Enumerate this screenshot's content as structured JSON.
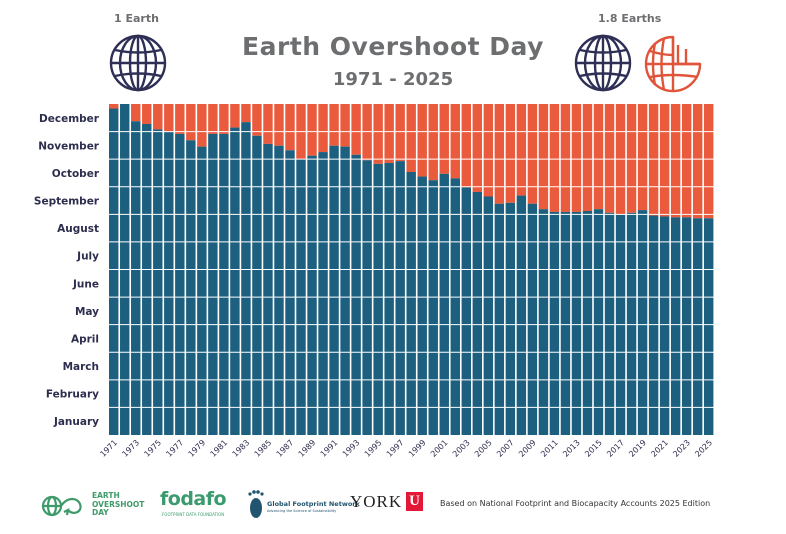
{
  "header": {
    "title": "Earth Overshoot Day",
    "subtitle": "1971 - 2025",
    "left_icon_label": "1 Earth",
    "right_icon_label": "1.8 Earths",
    "left_icon": "globe-icon",
    "right_icon": "partial-globe-icon"
  },
  "colors": {
    "remaining": "#1c5f7e",
    "overshoot": "#ea5a3c",
    "globe": "#2f2f56",
    "partial_globe": "#e0553a",
    "title": "#6d6e70"
  },
  "chart_data": {
    "type": "bar",
    "stacked": true,
    "x": [
      1971,
      1972,
      1973,
      1974,
      1975,
      1976,
      1977,
      1978,
      1979,
      1980,
      1981,
      1982,
      1983,
      1984,
      1985,
      1986,
      1987,
      1988,
      1989,
      1990,
      1991,
      1992,
      1993,
      1994,
      1995,
      1996,
      1997,
      1998,
      1999,
      2000,
      2001,
      2002,
      2003,
      2004,
      2005,
      2006,
      2007,
      2008,
      2009,
      2010,
      2011,
      2012,
      2013,
      2014,
      2015,
      2016,
      2017,
      2018,
      2019,
      2020,
      2021,
      2022,
      2023,
      2024,
      2025
    ],
    "x_tick_labels": [
      "1971",
      "1973",
      "1975",
      "1977",
      "1979",
      "1981",
      "1983",
      "1985",
      "1987",
      "1989",
      "1991",
      "1993",
      "1995",
      "1997",
      "1999",
      "2001",
      "2003",
      "2005",
      "2007",
      "2009",
      "2011",
      "2013",
      "2015",
      "2017",
      "2019",
      "2021",
      "2023",
      "2025"
    ],
    "y_tick_labels": [
      "January",
      "February",
      "March",
      "April",
      "May",
      "June",
      "July",
      "August",
      "September",
      "October",
      "November",
      "December"
    ],
    "ylim_days": [
      0,
      365
    ],
    "overshoot_day_of_year": [
      360,
      365,
      346,
      343,
      337,
      334,
      332,
      325,
      318,
      332,
      332,
      339,
      345,
      330,
      321,
      319,
      314,
      304,
      308,
      312,
      319,
      318,
      309,
      303,
      299,
      300,
      302,
      290,
      285,
      281,
      288,
      283,
      273,
      268,
      263,
      255,
      256,
      264,
      255,
      249,
      246,
      246,
      246,
      247,
      249,
      245,
      243,
      245,
      248,
      242,
      241,
      240,
      240,
      239,
      239
    ],
    "grid": "horizontal",
    "legend": "none"
  },
  "footer": {
    "logos": [
      {
        "name": "earth-overshoot-day-logo",
        "lines": [
          "EARTH",
          "OVERSHOOT",
          "DAY"
        ]
      },
      {
        "name": "fodafo-logo",
        "text": "fodafo",
        "tagline": "FOOTPRINT DATA FOUNDATION"
      },
      {
        "name": "global-footprint-network-logo",
        "text": "Global Footprint Network",
        "tagline": "Advancing the Science of Sustainability"
      },
      {
        "name": "york-university-logo",
        "text": "YORK",
        "badge": "U"
      }
    ],
    "basis_text": "Based on National Footprint and Biocapacity Accounts 2025 Edition"
  }
}
